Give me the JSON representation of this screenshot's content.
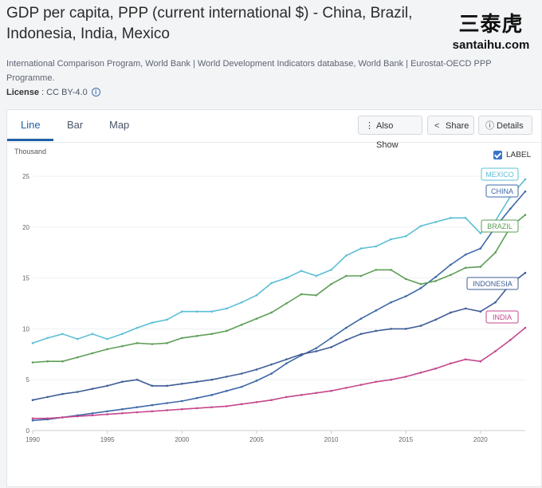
{
  "header": {
    "title": "GDP per capita, PPP (current international $) - China, Brazil, Indonesia, India, Mexico",
    "source": "International Comparison Program, World Bank | World Development Indicators database, World Bank | Eurostat-OECD PPP Programme.",
    "license_label": "License",
    "license_value": " : CC BY-4.0"
  },
  "watermark": {
    "text": "三泰虎",
    "url": "santaihu.com"
  },
  "tabs": [
    {
      "label": "Line",
      "active": true
    },
    {
      "label": "Bar",
      "active": false
    },
    {
      "label": "Map",
      "active": false
    }
  ],
  "toolbar": {
    "also_show": "Also Show",
    "share": "Share",
    "details": "Details"
  },
  "icons": {
    "also_show": "more-vertical-icon",
    "share": "share-icon",
    "details": "info-icon",
    "license_info": "info-icon"
  },
  "label_toggle": {
    "text": "LABEL",
    "checked": true
  },
  "chart_data": {
    "type": "line",
    "ylabel": "Thousand",
    "xlim": [
      1990,
      2023
    ],
    "ylim": [
      0,
      25
    ],
    "x_ticks": [
      1990,
      1995,
      2000,
      2005,
      2010,
      2015,
      2020
    ],
    "y_ticks": [
      0,
      5,
      10,
      15,
      20,
      25
    ],
    "grid": "horizontal",
    "x": [
      1990,
      1991,
      1992,
      1993,
      1994,
      1995,
      1996,
      1997,
      1998,
      1999,
      2000,
      2001,
      2002,
      2003,
      2004,
      2005,
      2006,
      2007,
      2008,
      2009,
      2010,
      2011,
      2012,
      2013,
      2014,
      2015,
      2016,
      2017,
      2018,
      2019,
      2020,
      2021,
      2022,
      2023
    ],
    "series": [
      {
        "name": "MEXICO",
        "color": "#5bbfd6",
        "values": [
          8.6,
          9.1,
          9.5,
          9.0,
          9.5,
          9.0,
          9.5,
          10.1,
          10.6,
          10.9,
          11.7,
          11.7,
          11.7,
          12.0,
          12.6,
          13.3,
          14.5,
          15.0,
          15.7,
          15.2,
          15.8,
          17.2,
          17.9,
          18.1,
          18.8,
          19.1,
          20.1,
          20.5,
          20.9,
          20.9,
          19.4,
          20.6,
          23.0,
          24.7
        ]
      },
      {
        "name": "CHINA",
        "color": "#3e68a8",
        "values": [
          1.0,
          1.1,
          1.3,
          1.5,
          1.7,
          1.9,
          2.1,
          2.3,
          2.5,
          2.7,
          2.9,
          3.2,
          3.5,
          3.9,
          4.3,
          4.9,
          5.6,
          6.6,
          7.4,
          8.1,
          9.1,
          10.1,
          11.0,
          11.8,
          12.6,
          13.2,
          14.0,
          15.1,
          16.3,
          17.3,
          17.9,
          20.0,
          21.8,
          23.5
        ]
      },
      {
        "name": "BRAZIL",
        "color": "#5e9e57",
        "values": [
          6.7,
          6.8,
          6.8,
          7.2,
          7.6,
          8.0,
          8.3,
          8.6,
          8.5,
          8.6,
          9.1,
          9.3,
          9.5,
          9.8,
          10.4,
          11.0,
          11.6,
          12.5,
          13.4,
          13.3,
          14.4,
          15.2,
          15.2,
          15.8,
          15.8,
          14.9,
          14.4,
          14.7,
          15.3,
          16.0,
          16.1,
          17.5,
          20.0,
          21.2
        ]
      },
      {
        "name": "INDONESIA",
        "color": "#3f5d96",
        "values": [
          3.0,
          3.3,
          3.6,
          3.8,
          4.1,
          4.4,
          4.8,
          5.0,
          4.4,
          4.4,
          4.6,
          4.8,
          5.0,
          5.3,
          5.6,
          6.0,
          6.5,
          7.0,
          7.5,
          7.8,
          8.2,
          8.9,
          9.5,
          9.8,
          10.0,
          10.0,
          10.3,
          10.9,
          11.6,
          12.0,
          11.7,
          12.6,
          14.4,
          15.5
        ]
      },
      {
        "name": "INDIA",
        "color": "#c4478c",
        "values": [
          1.2,
          1.2,
          1.3,
          1.4,
          1.5,
          1.6,
          1.7,
          1.8,
          1.9,
          2.0,
          2.1,
          2.2,
          2.3,
          2.4,
          2.6,
          2.8,
          3.0,
          3.3,
          3.5,
          3.7,
          3.9,
          4.2,
          4.5,
          4.8,
          5.0,
          5.3,
          5.7,
          6.1,
          6.6,
          7.0,
          6.8,
          7.8,
          8.9,
          10.1
        ]
      }
    ],
    "end_labels": true
  }
}
